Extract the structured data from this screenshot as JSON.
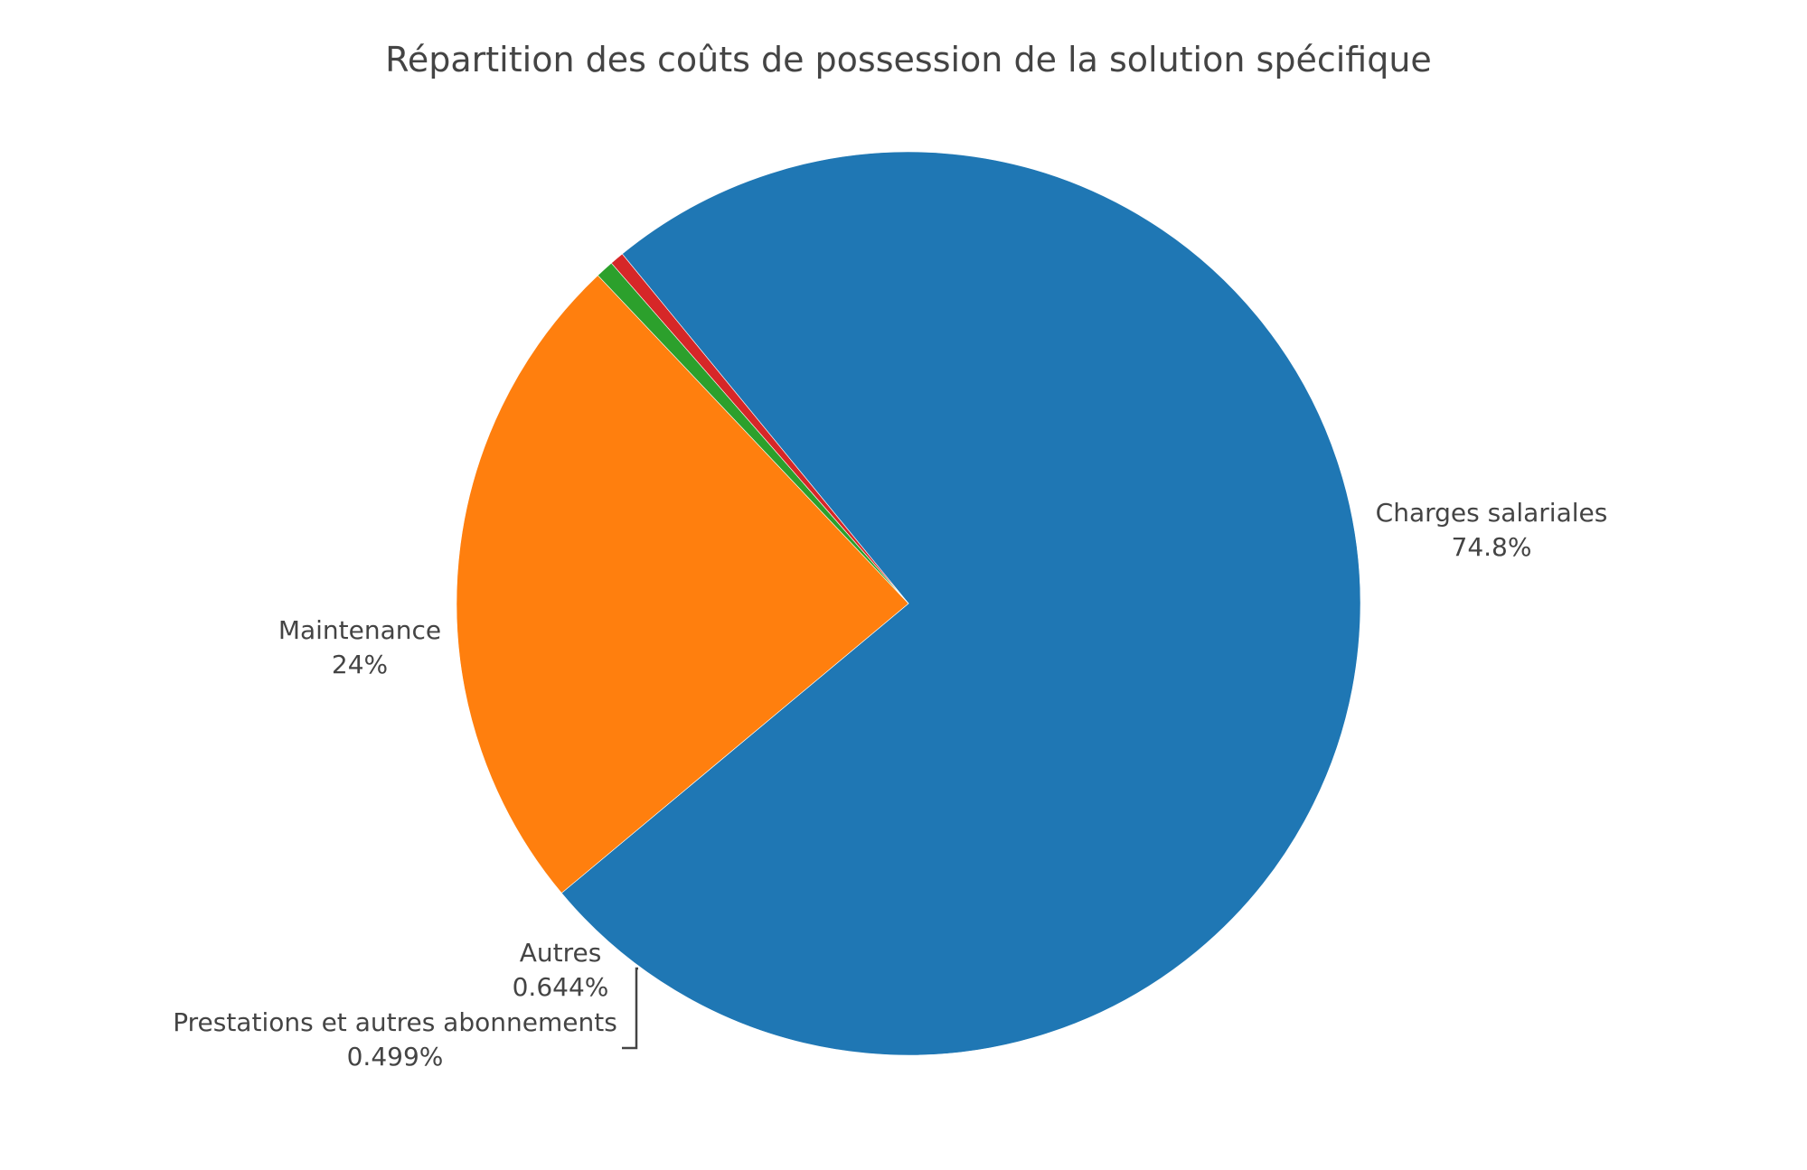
{
  "chart_data": {
    "type": "pie",
    "title": "Répartition des coûts de possession de la solution spécifique",
    "slices": [
      {
        "name": "Charges salariales",
        "value": 74.8,
        "percent_label": "74.8%",
        "color": "#1f77b4"
      },
      {
        "name": "Maintenance",
        "value": 24,
        "percent_label": "24%",
        "color": "#ff7f0e"
      },
      {
        "name": "Autres",
        "value": 0.644,
        "percent_label": "0.644%",
        "color": "#2ca02c"
      },
      {
        "name": "Prestations et autres abonnements",
        "value": 0.499,
        "percent_label": "0.499%",
        "color": "#d62728"
      }
    ],
    "legend": "none",
    "direction": "counterclockwise"
  }
}
